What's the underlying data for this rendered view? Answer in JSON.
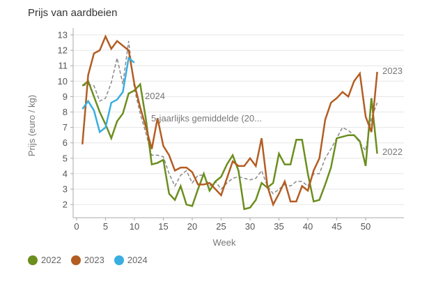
{
  "chart_data": {
    "type": "line",
    "title": "Prijs van aardbeien",
    "xlabel": "Week",
    "ylabel": "Prijs (euro / kg)",
    "xlim": [
      0,
      56
    ],
    "ylim": [
      1.2,
      13.3
    ],
    "xticks": [
      0,
      5,
      10,
      15,
      20,
      25,
      30,
      35,
      40,
      45,
      50
    ],
    "yticks": [
      2,
      3,
      4,
      5,
      6,
      7,
      8,
      9,
      10,
      11,
      12,
      13
    ],
    "grid": true,
    "legend_position": "bottom-left",
    "series": [
      {
        "name": "5-jaarlijks gemiddelde (20...",
        "color": "#888888",
        "dashed": true,
        "end_label": "5-jaarlijks gemiddelde (20...",
        "x": [
          1,
          2,
          3,
          4,
          5,
          6,
          7,
          8,
          9,
          10,
          11,
          12,
          13,
          14,
          15,
          16,
          17,
          18,
          19,
          20,
          21,
          22,
          23,
          24,
          25,
          26,
          27,
          28,
          29,
          30,
          31,
          32,
          33,
          34,
          35,
          36,
          37,
          38,
          39,
          40,
          41,
          42,
          43,
          44,
          45,
          46,
          47,
          48,
          49,
          50,
          51,
          52
        ],
        "values": [
          9.7,
          9.8,
          9.7,
          8.7,
          8.9,
          9.9,
          11.5,
          9.8,
          12.6,
          9.5,
          7.9,
          6.6,
          5.2,
          5.2,
          5.1,
          4.0,
          3.2,
          3.9,
          4.2,
          3.4,
          3.9,
          3.9,
          3.2,
          3.5,
          3.0,
          3.4,
          3.7,
          3.8,
          3.7,
          3.6,
          3.7,
          4.2,
          3.2,
          2.7,
          3.0,
          3.3,
          3.2,
          3.5,
          3.5,
          3.2,
          4.0,
          4.0,
          5.0,
          5.6,
          6.3,
          7.0,
          6.8,
          6.5,
          6.0,
          5.5,
          7.6,
          8.6
        ]
      },
      {
        "name": "2022",
        "color": "#6b8e1e",
        "end_label": "2022",
        "x": [
          1,
          2,
          3,
          4,
          5,
          6,
          7,
          8,
          9,
          10,
          11,
          12,
          13,
          14,
          15,
          16,
          17,
          18,
          19,
          20,
          21,
          22,
          23,
          24,
          25,
          26,
          27,
          28,
          29,
          30,
          31,
          32,
          33,
          34,
          35,
          36,
          37,
          38,
          39,
          40,
          41,
          42,
          43,
          44,
          45,
          46,
          47,
          48,
          49,
          50,
          51,
          52
        ],
        "values": [
          9.7,
          10.0,
          9.0,
          8.0,
          7.2,
          6.3,
          7.4,
          7.9,
          9.2,
          9.4,
          9.8,
          7.5,
          4.6,
          4.7,
          4.9,
          2.7,
          2.3,
          3.2,
          2.0,
          1.9,
          3.0,
          4.0,
          2.9,
          3.5,
          3.8,
          4.6,
          5.2,
          4.2,
          1.7,
          1.8,
          2.3,
          3.4,
          3.1,
          3.4,
          5.3,
          4.6,
          4.6,
          6.2,
          6.2,
          4.0,
          2.2,
          2.3,
          3.3,
          4.4,
          6.3,
          6.4,
          6.5,
          6.5,
          6.1,
          4.5,
          8.9,
          5.3
        ]
      },
      {
        "name": "2023",
        "color": "#b35d22",
        "end_label": "2023",
        "x": [
          1,
          2,
          3,
          4,
          5,
          6,
          7,
          8,
          9,
          10,
          11,
          12,
          13,
          14,
          15,
          16,
          17,
          18,
          19,
          20,
          21,
          22,
          23,
          24,
          25,
          26,
          27,
          28,
          29,
          30,
          31,
          32,
          33,
          34,
          35,
          36,
          37,
          38,
          39,
          40,
          41,
          42,
          43,
          44,
          45,
          46,
          47,
          48,
          49,
          50,
          51,
          52
        ],
        "values": [
          5.9,
          10.4,
          11.8,
          12.0,
          12.9,
          12.1,
          12.6,
          12.3,
          12.0,
          9.8,
          8.3,
          7.0,
          5.6,
          7.6,
          5.8,
          5.2,
          4.2,
          4.4,
          4.4,
          4.1,
          3.3,
          3.3,
          3.4,
          3.0,
          2.6,
          3.7,
          4.8,
          4.5,
          4.5,
          5.0,
          4.5,
          6.3,
          3.2,
          2.0,
          2.7,
          3.5,
          2.2,
          2.2,
          3.2,
          2.9,
          4.2,
          5.0,
          7.5,
          8.6,
          8.9,
          9.3,
          9.0,
          10.0,
          10.5,
          7.7,
          6.7,
          10.6
        ]
      },
      {
        "name": "2024",
        "color": "#3aaee0",
        "end_label": "2024",
        "x": [
          1,
          2,
          3,
          4,
          5,
          6,
          7,
          8,
          9,
          10
        ],
        "values": [
          8.2,
          8.7,
          8.1,
          6.7,
          7.0,
          8.6,
          8.8,
          9.3,
          11.5,
          11.2
        ]
      }
    ]
  }
}
